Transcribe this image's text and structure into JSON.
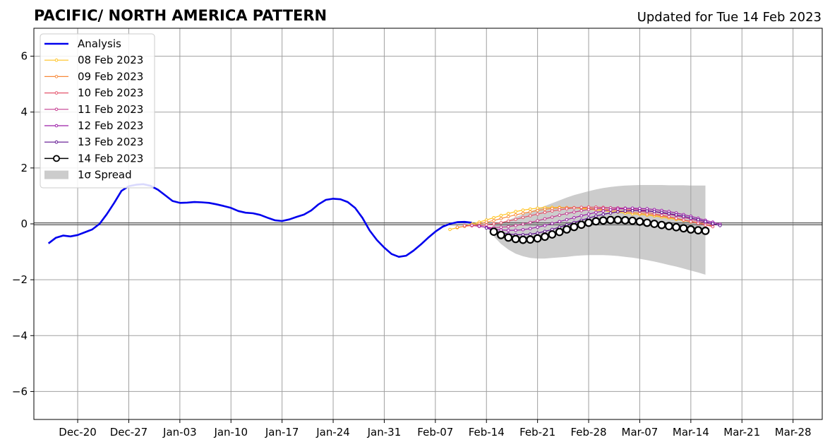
{
  "chart_data": {
    "type": "line",
    "title": "PACIFIC/ NORTH AMERICA PATTERN",
    "subtitle": "Updated for Tue 14 Feb 2023",
    "xlabel": "",
    "ylabel": "",
    "ylim": [
      -7,
      7
    ],
    "xlim": [
      "2022-12-14",
      "2023-04-01"
    ],
    "yticks": [
      -6,
      -4,
      -2,
      0,
      2,
      4,
      6
    ],
    "ytick_labels": [
      "−6",
      "−4",
      "−2",
      "0",
      "2",
      "4",
      "6"
    ],
    "xticks": [
      "2022-12-20",
      "2022-12-27",
      "2023-01-03",
      "2023-01-10",
      "2023-01-17",
      "2023-01-24",
      "2023-01-31",
      "2023-02-07",
      "2023-02-14",
      "2023-02-21",
      "2023-02-28",
      "2023-03-07",
      "2023-03-14",
      "2023-03-21",
      "2023-03-28"
    ],
    "xtick_labels": [
      "Dec-20",
      "Dec-27",
      "Jan-03",
      "Jan-10",
      "Jan-17",
      "Jan-24",
      "Jan-31",
      "Feb-07",
      "Feb-14",
      "Feb-21",
      "Feb-28",
      "Mar-07",
      "Mar-14",
      "Mar-21",
      "Mar-28"
    ],
    "grid": true,
    "zero_line": true,
    "legend": {
      "position": "top-left",
      "entries": [
        "Analysis",
        "08 Feb 2023",
        "09 Feb 2023",
        "10 Feb 2023",
        "11 Feb 2023",
        "12 Feb 2023",
        "13 Feb 2023",
        "14 Feb 2023",
        "1σ Spread"
      ]
    },
    "analysis": {
      "name": "Analysis",
      "color": "#0000ee",
      "start": "2022-12-16",
      "values": [
        -0.7,
        -0.5,
        -0.42,
        -0.45,
        -0.4,
        -0.3,
        -0.2,
        0.0,
        0.35,
        0.75,
        1.18,
        1.35,
        1.4,
        1.42,
        1.36,
        1.22,
        1.02,
        0.82,
        0.75,
        0.76,
        0.78,
        0.77,
        0.75,
        0.7,
        0.64,
        0.57,
        0.46,
        0.4,
        0.38,
        0.32,
        0.22,
        0.13,
        0.1,
        0.16,
        0.25,
        0.33,
        0.48,
        0.7,
        0.86,
        0.9,
        0.88,
        0.78,
        0.57,
        0.22,
        -0.24,
        -0.58,
        -0.85,
        -1.08,
        -1.18,
        -1.14,
        -0.96,
        -0.74,
        -0.5,
        -0.28,
        -0.1,
        0.0,
        0.06,
        0.07,
        0.04
      ]
    },
    "forecasts": [
      {
        "name": "08 Feb 2023",
        "color": "#ffc21e",
        "start": "2023-02-09",
        "values": [
          -0.2,
          -0.14,
          -0.08,
          -0.01,
          0.06,
          0.14,
          0.22,
          0.3,
          0.37,
          0.44,
          0.49,
          0.53,
          0.56,
          0.58,
          0.59,
          0.59,
          0.58,
          0.57,
          0.55,
          0.52,
          0.5,
          0.47,
          0.44,
          0.42,
          0.39,
          0.36,
          0.34,
          0.31,
          0.28,
          0.24,
          0.2,
          0.16,
          0.12,
          0.07,
          0.02,
          -0.04
        ]
      },
      {
        "name": "09 Feb 2023",
        "color": "#f7893a",
        "start": "2023-02-10",
        "values": [
          -0.12,
          -0.09,
          -0.05,
          0.0,
          0.06,
          0.12,
          0.19,
          0.26,
          0.32,
          0.38,
          0.43,
          0.48,
          0.52,
          0.55,
          0.57,
          0.58,
          0.58,
          0.57,
          0.56,
          0.54,
          0.52,
          0.5,
          0.47,
          0.44,
          0.41,
          0.38,
          0.35,
          0.32,
          0.28,
          0.24,
          0.19,
          0.14,
          0.09,
          0.04,
          -0.02,
          -0.08
        ]
      },
      {
        "name": "10 Feb 2023",
        "color": "#e4546c",
        "start": "2023-02-11",
        "values": [
          -0.06,
          -0.07,
          -0.06,
          -0.04,
          0.0,
          0.04,
          0.1,
          0.16,
          0.23,
          0.29,
          0.35,
          0.41,
          0.46,
          0.5,
          0.54,
          0.57,
          0.59,
          0.6,
          0.6,
          0.59,
          0.57,
          0.55,
          0.52,
          0.49,
          0.45,
          0.41,
          0.36,
          0.31,
          0.26,
          0.2,
          0.14,
          0.08,
          0.02,
          -0.04,
          -0.1
        ]
      },
      {
        "name": "11 Feb 2023",
        "color": "#c43b8f",
        "start": "2023-02-12",
        "values": [
          -0.05,
          -0.09,
          -0.12,
          -0.13,
          -0.12,
          -0.1,
          -0.06,
          -0.01,
          0.05,
          0.11,
          0.18,
          0.24,
          0.31,
          0.37,
          0.42,
          0.47,
          0.51,
          0.54,
          0.56,
          0.57,
          0.57,
          0.56,
          0.54,
          0.51,
          0.48,
          0.44,
          0.39,
          0.34,
          0.29,
          0.23,
          0.17,
          0.1,
          0.04,
          -0.02
        ]
      },
      {
        "name": "12 Feb 2023",
        "color": "#9c1ea8",
        "start": "2023-02-13",
        "values": [
          -0.08,
          -0.13,
          -0.18,
          -0.22,
          -0.23,
          -0.23,
          -0.21,
          -0.17,
          -0.12,
          -0.06,
          0.01,
          0.08,
          0.15,
          0.22,
          0.29,
          0.35,
          0.41,
          0.46,
          0.5,
          0.53,
          0.55,
          0.56,
          0.55,
          0.54,
          0.51,
          0.48,
          0.44,
          0.39,
          0.33,
          0.27,
          0.2,
          0.13,
          0.06,
          -0.01
        ]
      },
      {
        "name": "13 Feb 2023",
        "color": "#5d0f8e",
        "start": "2023-02-14",
        "values": [
          -0.15,
          -0.24,
          -0.31,
          -0.36,
          -0.39,
          -0.39,
          -0.37,
          -0.33,
          -0.27,
          -0.2,
          -0.12,
          -0.04,
          0.05,
          0.13,
          0.21,
          0.28,
          0.34,
          0.39,
          0.43,
          0.46,
          0.47,
          0.47,
          0.46,
          0.44,
          0.41,
          0.37,
          0.32,
          0.27,
          0.21,
          0.15,
          0.08,
          0.01,
          -0.06
        ]
      },
      {
        "name": "14 Feb 2023",
        "color": "#000000",
        "start": "2023-02-15",
        "values": [
          -0.28,
          -0.4,
          -0.49,
          -0.54,
          -0.57,
          -0.56,
          -0.52,
          -0.46,
          -0.38,
          -0.29,
          -0.2,
          -0.11,
          -0.03,
          0.04,
          0.09,
          0.12,
          0.14,
          0.14,
          0.13,
          0.11,
          0.08,
          0.04,
          0.0,
          -0.04,
          -0.08,
          -0.12,
          -0.16,
          -0.2,
          -0.23,
          -0.25
        ]
      }
    ],
    "spread": {
      "name": "1σ Spread",
      "color": "#cccccc",
      "start": "2023-02-15",
      "upper": [
        -0.05,
        0.05,
        0.14,
        0.24,
        0.34,
        0.44,
        0.54,
        0.64,
        0.74,
        0.84,
        0.94,
        1.03,
        1.1,
        1.17,
        1.23,
        1.28,
        1.32,
        1.35,
        1.37,
        1.38,
        1.39,
        1.39,
        1.39,
        1.39,
        1.38,
        1.38,
        1.38,
        1.37,
        1.37,
        1.37
      ],
      "lower": [
        -0.45,
        -0.72,
        -0.92,
        -1.07,
        -1.16,
        -1.22,
        -1.24,
        -1.24,
        -1.22,
        -1.2,
        -1.18,
        -1.15,
        -1.13,
        -1.12,
        -1.12,
        -1.12,
        -1.13,
        -1.15,
        -1.18,
        -1.21,
        -1.25,
        -1.3,
        -1.35,
        -1.41,
        -1.47,
        -1.53,
        -1.6,
        -1.67,
        -1.74,
        -1.82
      ]
    }
  }
}
